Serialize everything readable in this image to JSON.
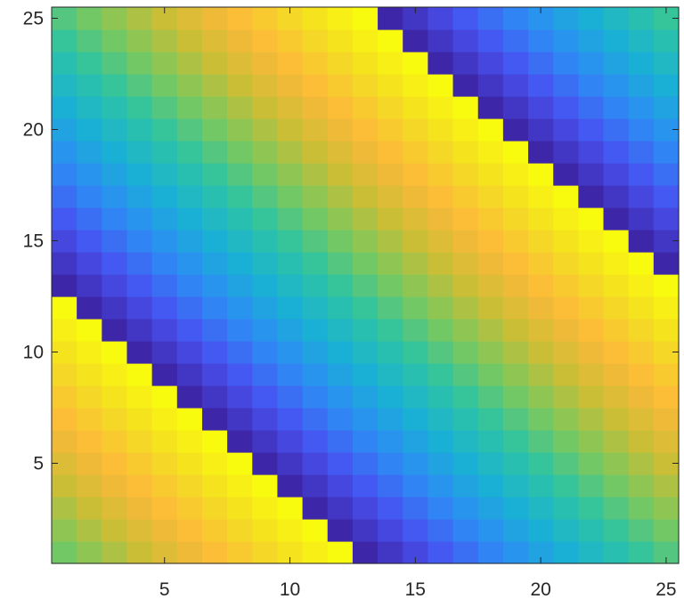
{
  "chart_data": {
    "type": "heatmap",
    "title": "",
    "xlabel": "",
    "ylabel": "",
    "grid": false,
    "colormap": "parula",
    "colormap_stops": [
      "#3e26a8",
      "#4752f2",
      "#2d8bf4",
      "#1ab0d6",
      "#2cc3a4",
      "#7cc95c",
      "#cabe36",
      "#fdb93a",
      "#f4db24",
      "#f9fb0e"
    ],
    "rows": 25,
    "cols": 25,
    "y_direction": "normal",
    "xlim": [
      0.5,
      25.5
    ],
    "ylim": [
      0.5,
      25.5
    ],
    "x_ticks": [
      5,
      10,
      15,
      20,
      25
    ],
    "y_ticks": [
      5,
      10,
      15,
      20,
      25
    ],
    "x_tick_labels": [
      "5",
      "10",
      "15",
      "20",
      "25"
    ],
    "y_tick_labels": [
      "5",
      "10",
      "15",
      "20",
      "25"
    ],
    "value_range": [
      0,
      1
    ],
    "pattern": "value(row, col) = ((col + row + 11) mod 25) / 24 — diagonal sawtooth bands",
    "values": [
      [
        0.542,
        0.583,
        0.625,
        0.667,
        0.708,
        0.75,
        0.792,
        0.833,
        0.875,
        0.917,
        0.958,
        1.0,
        0.0,
        0.042,
        0.083,
        0.125,
        0.167,
        0.208,
        0.25,
        0.292,
        0.333,
        0.375,
        0.417,
        0.458,
        0.5
      ],
      [
        0.583,
        0.625,
        0.667,
        0.708,
        0.75,
        0.792,
        0.833,
        0.875,
        0.917,
        0.958,
        1.0,
        0.0,
        0.042,
        0.083,
        0.125,
        0.167,
        0.208,
        0.25,
        0.292,
        0.333,
        0.375,
        0.417,
        0.458,
        0.5,
        0.542
      ],
      [
        0.625,
        0.667,
        0.708,
        0.75,
        0.792,
        0.833,
        0.875,
        0.917,
        0.958,
        1.0,
        0.0,
        0.042,
        0.083,
        0.125,
        0.167,
        0.208,
        0.25,
        0.292,
        0.333,
        0.375,
        0.417,
        0.458,
        0.5,
        0.542,
        0.583
      ],
      [
        0.667,
        0.708,
        0.75,
        0.792,
        0.833,
        0.875,
        0.917,
        0.958,
        1.0,
        0.0,
        0.042,
        0.083,
        0.125,
        0.167,
        0.208,
        0.25,
        0.292,
        0.333,
        0.375,
        0.417,
        0.458,
        0.5,
        0.542,
        0.583,
        0.625
      ],
      [
        0.708,
        0.75,
        0.792,
        0.833,
        0.875,
        0.917,
        0.958,
        1.0,
        0.0,
        0.042,
        0.083,
        0.125,
        0.167,
        0.208,
        0.25,
        0.292,
        0.333,
        0.375,
        0.417,
        0.458,
        0.5,
        0.542,
        0.583,
        0.625,
        0.667
      ],
      [
        0.75,
        0.792,
        0.833,
        0.875,
        0.917,
        0.958,
        1.0,
        0.0,
        0.042,
        0.083,
        0.125,
        0.167,
        0.208,
        0.25,
        0.292,
        0.333,
        0.375,
        0.417,
        0.458,
        0.5,
        0.542,
        0.583,
        0.625,
        0.667,
        0.708
      ],
      [
        0.792,
        0.833,
        0.875,
        0.917,
        0.958,
        1.0,
        0.0,
        0.042,
        0.083,
        0.125,
        0.167,
        0.208,
        0.25,
        0.292,
        0.333,
        0.375,
        0.417,
        0.458,
        0.5,
        0.542,
        0.583,
        0.625,
        0.667,
        0.708,
        0.75
      ],
      [
        0.833,
        0.875,
        0.917,
        0.958,
        1.0,
        0.0,
        0.042,
        0.083,
        0.125,
        0.167,
        0.208,
        0.25,
        0.292,
        0.333,
        0.375,
        0.417,
        0.458,
        0.5,
        0.542,
        0.583,
        0.625,
        0.667,
        0.708,
        0.75,
        0.792
      ],
      [
        0.875,
        0.917,
        0.958,
        1.0,
        0.0,
        0.042,
        0.083,
        0.125,
        0.167,
        0.208,
        0.25,
        0.292,
        0.333,
        0.375,
        0.417,
        0.458,
        0.5,
        0.542,
        0.583,
        0.625,
        0.667,
        0.708,
        0.75,
        0.792,
        0.833
      ],
      [
        0.917,
        0.958,
        1.0,
        0.0,
        0.042,
        0.083,
        0.125,
        0.167,
        0.208,
        0.25,
        0.292,
        0.333,
        0.375,
        0.417,
        0.458,
        0.5,
        0.542,
        0.583,
        0.625,
        0.667,
        0.708,
        0.75,
        0.792,
        0.833,
        0.875
      ],
      [
        0.958,
        1.0,
        0.0,
        0.042,
        0.083,
        0.125,
        0.167,
        0.208,
        0.25,
        0.292,
        0.333,
        0.375,
        0.417,
        0.458,
        0.5,
        0.542,
        0.583,
        0.625,
        0.667,
        0.708,
        0.75,
        0.792,
        0.833,
        0.875,
        0.917
      ],
      [
        1.0,
        0.0,
        0.042,
        0.083,
        0.125,
        0.167,
        0.208,
        0.25,
        0.292,
        0.333,
        0.375,
        0.417,
        0.458,
        0.5,
        0.542,
        0.583,
        0.625,
        0.667,
        0.708,
        0.75,
        0.792,
        0.833,
        0.875,
        0.917,
        0.958
      ],
      [
        0.0,
        0.042,
        0.083,
        0.125,
        0.167,
        0.208,
        0.25,
        0.292,
        0.333,
        0.375,
        0.417,
        0.458,
        0.5,
        0.542,
        0.583,
        0.625,
        0.667,
        0.708,
        0.75,
        0.792,
        0.833,
        0.875,
        0.917,
        0.958,
        1.0
      ],
      [
        0.042,
        0.083,
        0.125,
        0.167,
        0.208,
        0.25,
        0.292,
        0.333,
        0.375,
        0.417,
        0.458,
        0.5,
        0.542,
        0.583,
        0.625,
        0.667,
        0.708,
        0.75,
        0.792,
        0.833,
        0.875,
        0.917,
        0.958,
        1.0,
        0.0
      ],
      [
        0.083,
        0.125,
        0.167,
        0.208,
        0.25,
        0.292,
        0.333,
        0.375,
        0.417,
        0.458,
        0.5,
        0.542,
        0.583,
        0.625,
        0.667,
        0.708,
        0.75,
        0.792,
        0.833,
        0.875,
        0.917,
        0.958,
        1.0,
        0.0,
        0.042
      ],
      [
        0.125,
        0.167,
        0.208,
        0.25,
        0.292,
        0.333,
        0.375,
        0.417,
        0.458,
        0.5,
        0.542,
        0.583,
        0.625,
        0.667,
        0.708,
        0.75,
        0.792,
        0.833,
        0.875,
        0.917,
        0.958,
        1.0,
        0.0,
        0.042,
        0.083
      ],
      [
        0.167,
        0.208,
        0.25,
        0.292,
        0.333,
        0.375,
        0.417,
        0.458,
        0.5,
        0.542,
        0.583,
        0.625,
        0.667,
        0.708,
        0.75,
        0.792,
        0.833,
        0.875,
        0.917,
        0.958,
        1.0,
        0.0,
        0.042,
        0.083,
        0.125
      ],
      [
        0.208,
        0.25,
        0.292,
        0.333,
        0.375,
        0.417,
        0.458,
        0.5,
        0.542,
        0.583,
        0.625,
        0.667,
        0.708,
        0.75,
        0.792,
        0.833,
        0.875,
        0.917,
        0.958,
        1.0,
        0.0,
        0.042,
        0.083,
        0.125,
        0.167
      ],
      [
        0.25,
        0.292,
        0.333,
        0.375,
        0.417,
        0.458,
        0.5,
        0.542,
        0.583,
        0.625,
        0.667,
        0.708,
        0.75,
        0.792,
        0.833,
        0.875,
        0.917,
        0.958,
        1.0,
        0.0,
        0.042,
        0.083,
        0.125,
        0.167,
        0.208
      ],
      [
        0.292,
        0.333,
        0.375,
        0.417,
        0.458,
        0.5,
        0.542,
        0.583,
        0.625,
        0.667,
        0.708,
        0.75,
        0.792,
        0.833,
        0.875,
        0.917,
        0.958,
        1.0,
        0.0,
        0.042,
        0.083,
        0.125,
        0.167,
        0.208,
        0.25
      ],
      [
        0.333,
        0.375,
        0.417,
        0.458,
        0.5,
        0.542,
        0.583,
        0.625,
        0.667,
        0.708,
        0.75,
        0.792,
        0.833,
        0.875,
        0.917,
        0.958,
        1.0,
        0.0,
        0.042,
        0.083,
        0.125,
        0.167,
        0.208,
        0.25,
        0.292
      ],
      [
        0.375,
        0.417,
        0.458,
        0.5,
        0.542,
        0.583,
        0.625,
        0.667,
        0.708,
        0.75,
        0.792,
        0.833,
        0.875,
        0.917,
        0.958,
        1.0,
        0.0,
        0.042,
        0.083,
        0.125,
        0.167,
        0.208,
        0.25,
        0.292,
        0.333
      ],
      [
        0.417,
        0.458,
        0.5,
        0.542,
        0.583,
        0.625,
        0.667,
        0.708,
        0.75,
        0.792,
        0.833,
        0.875,
        0.917,
        0.958,
        1.0,
        0.0,
        0.042,
        0.083,
        0.125,
        0.167,
        0.208,
        0.25,
        0.292,
        0.333,
        0.375
      ],
      [
        0.458,
        0.5,
        0.542,
        0.583,
        0.625,
        0.667,
        0.708,
        0.75,
        0.792,
        0.833,
        0.875,
        0.917,
        0.958,
        1.0,
        0.0,
        0.042,
        0.083,
        0.125,
        0.167,
        0.208,
        0.25,
        0.292,
        0.333,
        0.375,
        0.417
      ],
      [
        0.5,
        0.542,
        0.583,
        0.625,
        0.667,
        0.708,
        0.75,
        0.792,
        0.833,
        0.875,
        0.917,
        0.958,
        1.0,
        0.0,
        0.042,
        0.083,
        0.125,
        0.167,
        0.208,
        0.25,
        0.292,
        0.333,
        0.375,
        0.417,
        0.458
      ]
    ]
  }
}
